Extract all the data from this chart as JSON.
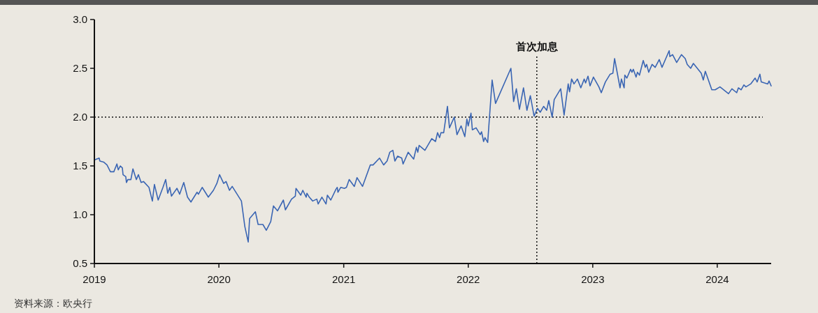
{
  "chart_data": {
    "type": "line",
    "x": [
      "2019-01-01",
      "2019-01-15",
      "2019-01-17",
      "2019-01-28",
      "2019-02-07",
      "2019-02-17",
      "2019-02-27",
      "2019-03-08",
      "2019-03-12",
      "2019-03-18",
      "2019-03-24",
      "2019-03-26",
      "2019-04-03",
      "2019-04-05",
      "2019-04-09",
      "2019-04-18",
      "2019-04-24",
      "2019-05-04",
      "2019-05-10",
      "2019-05-18",
      "2019-05-25",
      "2019-06-10",
      "2019-06-20",
      "2019-06-26",
      "2019-07-07",
      "2019-07-21",
      "2019-07-29",
      "2019-08-04",
      "2019-08-10",
      "2019-08-15",
      "2019-08-31",
      "2019-09-08",
      "2019-09-20",
      "2019-10-01",
      "2019-10-11",
      "2019-10-29",
      "2019-11-02",
      "2019-11-13",
      "2019-12-01",
      "2019-12-16",
      "2019-12-26",
      "2020-01-03",
      "2020-01-15",
      "2020-01-22",
      "2020-02-01",
      "2020-02-09",
      "2020-03-07",
      "2020-03-17",
      "2020-03-27",
      "2020-03-31",
      "2020-04-17",
      "2020-04-25",
      "2020-05-09",
      "2020-05-19",
      "2020-06-01",
      "2020-06-09",
      "2020-06-21",
      "2020-07-08",
      "2020-07-14",
      "2020-08-01",
      "2020-08-12",
      "2020-08-14",
      "2020-08-28",
      "2020-09-03",
      "2020-09-13",
      "2020-09-15",
      "2020-09-22",
      "2020-10-02",
      "2020-10-14",
      "2020-10-18",
      "2020-10-29",
      "2020-11-10",
      "2020-11-14",
      "2020-11-24",
      "2020-12-09",
      "2020-12-13",
      "2020-12-15",
      "2020-12-23",
      "2021-01-03",
      "2021-01-09",
      "2021-01-17",
      "2021-02-01",
      "2021-02-09",
      "2021-02-25",
      "2021-03-20",
      "2021-03-28",
      "2021-04-16",
      "2021-04-28",
      "2021-05-08",
      "2021-05-16",
      "2021-05-25",
      "2021-05-31",
      "2021-06-08",
      "2021-06-20",
      "2021-06-24",
      "2021-07-09",
      "2021-07-25",
      "2021-08-02",
      "2021-08-06",
      "2021-08-10",
      "2021-08-27",
      "2021-09-16",
      "2021-09-27",
      "2021-10-03",
      "2021-10-09",
      "2021-10-13",
      "2021-10-21",
      "2021-11-01",
      "2021-11-07",
      "2021-11-21",
      "2021-11-29",
      "2021-12-11",
      "2021-12-22",
      "2021-12-28",
      "2022-01-01",
      "2022-01-09",
      "2022-01-13",
      "2022-01-24",
      "2022-02-05",
      "2022-02-09",
      "2022-02-15",
      "2022-02-19",
      "2022-02-27",
      "2022-03-12",
      "2022-03-22",
      "2022-05-06",
      "2022-05-14",
      "2022-05-22",
      "2022-05-31",
      "2022-06-12",
      "2022-06-22",
      "2022-07-02",
      "2022-07-13",
      "2022-07-23",
      "2022-07-31",
      "2022-08-10",
      "2022-08-19",
      "2022-08-25",
      "2022-09-04",
      "2022-09-10",
      "2022-09-29",
      "2022-10-09",
      "2022-10-21",
      "2022-10-25",
      "2022-10-31",
      "2022-11-07",
      "2022-11-17",
      "2022-11-27",
      "2022-12-07",
      "2022-12-11",
      "2022-12-18",
      "2022-12-24",
      "2023-01-03",
      "2023-01-19",
      "2023-01-26",
      "2023-02-07",
      "2023-02-21",
      "2023-03-01",
      "2023-03-06",
      "2023-03-22",
      "2023-03-26",
      "2023-04-03",
      "2023-04-05",
      "2023-04-11",
      "2023-04-22",
      "2023-04-26",
      "2023-04-30",
      "2023-05-08",
      "2023-05-12",
      "2023-05-18",
      "2023-05-29",
      "2023-06-04",
      "2023-06-08",
      "2023-06-14",
      "2023-06-24",
      "2023-07-03",
      "2023-07-15",
      "2023-07-23",
      "2023-08-13",
      "2023-08-15",
      "2023-08-23",
      "2023-09-04",
      "2023-09-18",
      "2023-09-29",
      "2023-10-05",
      "2023-10-15",
      "2023-10-23",
      "2023-11-15",
      "2023-11-21",
      "2023-11-27",
      "2023-12-16",
      "2023-12-26",
      "2024-01-09",
      "2024-02-03",
      "2024-02-13",
      "2024-02-27",
      "2024-03-03",
      "2024-03-11",
      "2024-03-19",
      "2024-03-25",
      "2024-04-08",
      "2024-04-21",
      "2024-04-27",
      "2024-05-05",
      "2024-05-09",
      "2024-05-28",
      "2024-06-01",
      "2024-06-07"
    ],
    "values": [
      1.56,
      1.58,
      1.55,
      1.54,
      1.51,
      1.44,
      1.44,
      1.52,
      1.46,
      1.5,
      1.48,
      1.41,
      1.39,
      1.33,
      1.36,
      1.36,
      1.47,
      1.36,
      1.41,
      1.33,
      1.34,
      1.28,
      1.14,
      1.31,
      1.15,
      1.28,
      1.36,
      1.22,
      1.28,
      1.19,
      1.27,
      1.21,
      1.33,
      1.18,
      1.13,
      1.23,
      1.21,
      1.28,
      1.18,
      1.25,
      1.32,
      1.41,
      1.32,
      1.34,
      1.25,
      1.29,
      1.14,
      0.88,
      0.72,
      0.96,
      1.03,
      0.9,
      0.9,
      0.84,
      0.93,
      1.09,
      1.04,
      1.15,
      1.05,
      1.16,
      1.19,
      1.27,
      1.2,
      1.25,
      1.18,
      1.22,
      1.18,
      1.14,
      1.16,
      1.11,
      1.18,
      1.11,
      1.2,
      1.15,
      1.26,
      1.28,
      1.23,
      1.28,
      1.27,
      1.28,
      1.36,
      1.29,
      1.38,
      1.29,
      1.51,
      1.51,
      1.58,
      1.51,
      1.55,
      1.64,
      1.66,
      1.55,
      1.6,
      1.58,
      1.52,
      1.64,
      1.57,
      1.69,
      1.64,
      1.71,
      1.66,
      1.78,
      1.75,
      1.84,
      1.79,
      1.84,
      1.84,
      2.11,
      1.89,
      2.0,
      1.82,
      1.91,
      1.8,
      1.98,
      1.91,
      2.04,
      1.87,
      1.89,
      1.82,
      1.85,
      1.75,
      1.79,
      1.74,
      2.38,
      2.14,
      2.5,
      2.16,
      2.29,
      2.08,
      2.3,
      2.07,
      2.22,
      2.01,
      2.09,
      2.05,
      2.11,
      2.07,
      2.17,
      2.0,
      2.18,
      2.29,
      2.02,
      2.34,
      2.26,
      2.39,
      2.34,
      2.39,
      2.3,
      2.39,
      2.35,
      2.42,
      2.32,
      2.41,
      2.31,
      2.25,
      2.36,
      2.44,
      2.45,
      2.6,
      2.3,
      2.39,
      2.3,
      2.43,
      2.4,
      2.49,
      2.46,
      2.49,
      2.41,
      2.46,
      2.43,
      2.58,
      2.51,
      2.54,
      2.46,
      2.54,
      2.51,
      2.59,
      2.51,
      2.68,
      2.62,
      2.64,
      2.56,
      2.64,
      2.6,
      2.54,
      2.5,
      2.55,
      2.45,
      2.38,
      2.47,
      2.28,
      2.28,
      2.31,
      2.24,
      2.29,
      2.25,
      2.3,
      2.28,
      2.33,
      2.31,
      2.34,
      2.4,
      2.36,
      2.44,
      2.36,
      2.34,
      2.37,
      2.32
    ],
    "color": "#3a65b3",
    "xlim": [
      "2019-01-01",
      "2024-06-07"
    ],
    "xticks": [
      "2019",
      "2020",
      "2021",
      "2022",
      "2023",
      "2024"
    ],
    "ylim": [
      0.5,
      3.0
    ],
    "yticks": [
      {
        "value": 0.5,
        "label": "0.5"
      },
      {
        "value": 1.0,
        "label": "1.0"
      },
      {
        "value": 1.5,
        "label": "1.5"
      },
      {
        "value": 2.0,
        "label": "2.0"
      },
      {
        "value": 2.5,
        "label": "2.5"
      },
      {
        "value": 3.0,
        "label": "3.0"
      }
    ],
    "ref_lines": [
      {
        "axis": "y",
        "value": 2.0,
        "label": null,
        "line_style": "dotted",
        "color": "#111111"
      },
      {
        "axis": "x",
        "value": "2022-07-21",
        "label": "首次加息",
        "line_style": "dotted",
        "color": "#111111"
      }
    ],
    "annotations": [
      "资料来源：欧央行"
    ]
  }
}
